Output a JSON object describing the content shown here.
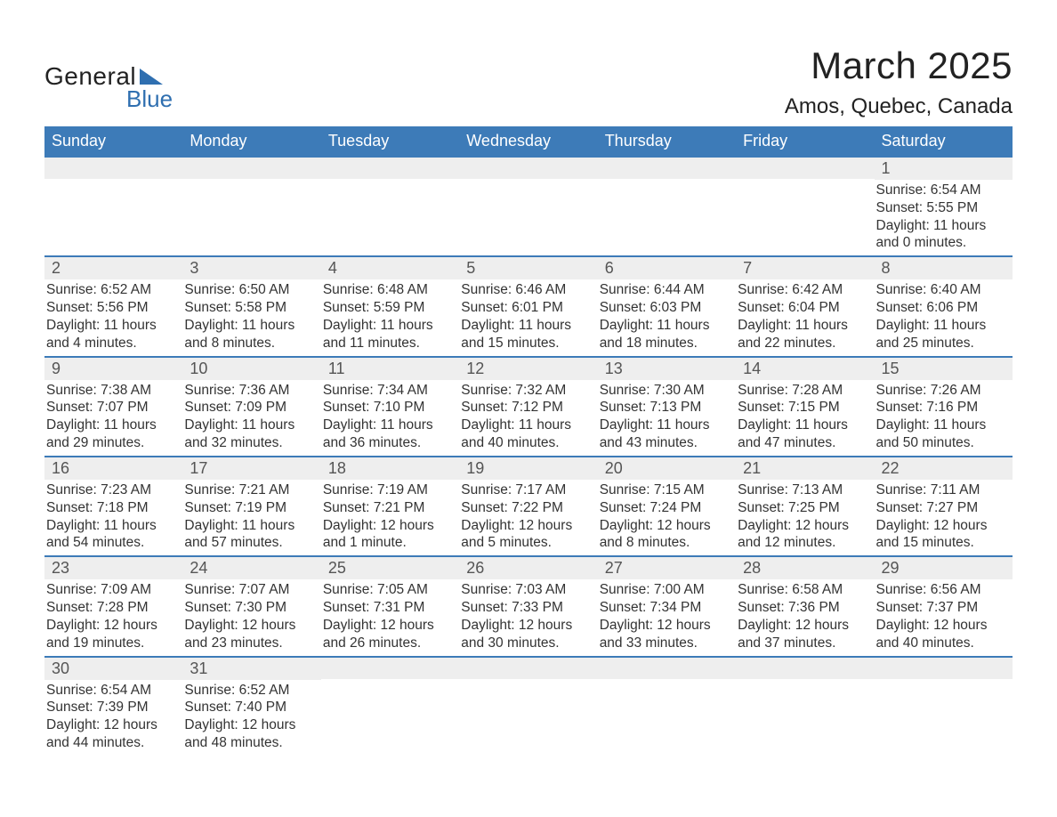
{
  "logo": {
    "general": "General",
    "blue": "Blue"
  },
  "title": "March 2025",
  "location": "Amos, Quebec, Canada",
  "theme": {
    "header_bg": "#3d7bb8",
    "header_fg": "#ffffff",
    "daynum_bg": "#eeeeee",
    "daynum_fg": "#555555",
    "text_fg": "#333333",
    "border": "#3d7bb8",
    "page_bg": "#ffffff"
  },
  "day_headers": [
    "Sunday",
    "Monday",
    "Tuesday",
    "Wednesday",
    "Thursday",
    "Friday",
    "Saturday"
  ],
  "weeks": [
    [
      {
        "n": "",
        "sr": "",
        "ss": "",
        "dl": ""
      },
      {
        "n": "",
        "sr": "",
        "ss": "",
        "dl": ""
      },
      {
        "n": "",
        "sr": "",
        "ss": "",
        "dl": ""
      },
      {
        "n": "",
        "sr": "",
        "ss": "",
        "dl": ""
      },
      {
        "n": "",
        "sr": "",
        "ss": "",
        "dl": ""
      },
      {
        "n": "",
        "sr": "",
        "ss": "",
        "dl": ""
      },
      {
        "n": "1",
        "sr": "Sunrise: 6:54 AM",
        "ss": "Sunset: 5:55 PM",
        "dl": "Daylight: 11 hours and 0 minutes."
      }
    ],
    [
      {
        "n": "2",
        "sr": "Sunrise: 6:52 AM",
        "ss": "Sunset: 5:56 PM",
        "dl": "Daylight: 11 hours and 4 minutes."
      },
      {
        "n": "3",
        "sr": "Sunrise: 6:50 AM",
        "ss": "Sunset: 5:58 PM",
        "dl": "Daylight: 11 hours and 8 minutes."
      },
      {
        "n": "4",
        "sr": "Sunrise: 6:48 AM",
        "ss": "Sunset: 5:59 PM",
        "dl": "Daylight: 11 hours and 11 minutes."
      },
      {
        "n": "5",
        "sr": "Sunrise: 6:46 AM",
        "ss": "Sunset: 6:01 PM",
        "dl": "Daylight: 11 hours and 15 minutes."
      },
      {
        "n": "6",
        "sr": "Sunrise: 6:44 AM",
        "ss": "Sunset: 6:03 PM",
        "dl": "Daylight: 11 hours and 18 minutes."
      },
      {
        "n": "7",
        "sr": "Sunrise: 6:42 AM",
        "ss": "Sunset: 6:04 PM",
        "dl": "Daylight: 11 hours and 22 minutes."
      },
      {
        "n": "8",
        "sr": "Sunrise: 6:40 AM",
        "ss": "Sunset: 6:06 PM",
        "dl": "Daylight: 11 hours and 25 minutes."
      }
    ],
    [
      {
        "n": "9",
        "sr": "Sunrise: 7:38 AM",
        "ss": "Sunset: 7:07 PM",
        "dl": "Daylight: 11 hours and 29 minutes."
      },
      {
        "n": "10",
        "sr": "Sunrise: 7:36 AM",
        "ss": "Sunset: 7:09 PM",
        "dl": "Daylight: 11 hours and 32 minutes."
      },
      {
        "n": "11",
        "sr": "Sunrise: 7:34 AM",
        "ss": "Sunset: 7:10 PM",
        "dl": "Daylight: 11 hours and 36 minutes."
      },
      {
        "n": "12",
        "sr": "Sunrise: 7:32 AM",
        "ss": "Sunset: 7:12 PM",
        "dl": "Daylight: 11 hours and 40 minutes."
      },
      {
        "n": "13",
        "sr": "Sunrise: 7:30 AM",
        "ss": "Sunset: 7:13 PM",
        "dl": "Daylight: 11 hours and 43 minutes."
      },
      {
        "n": "14",
        "sr": "Sunrise: 7:28 AM",
        "ss": "Sunset: 7:15 PM",
        "dl": "Daylight: 11 hours and 47 minutes."
      },
      {
        "n": "15",
        "sr": "Sunrise: 7:26 AM",
        "ss": "Sunset: 7:16 PM",
        "dl": "Daylight: 11 hours and 50 minutes."
      }
    ],
    [
      {
        "n": "16",
        "sr": "Sunrise: 7:23 AM",
        "ss": "Sunset: 7:18 PM",
        "dl": "Daylight: 11 hours and 54 minutes."
      },
      {
        "n": "17",
        "sr": "Sunrise: 7:21 AM",
        "ss": "Sunset: 7:19 PM",
        "dl": "Daylight: 11 hours and 57 minutes."
      },
      {
        "n": "18",
        "sr": "Sunrise: 7:19 AM",
        "ss": "Sunset: 7:21 PM",
        "dl": "Daylight: 12 hours and 1 minute."
      },
      {
        "n": "19",
        "sr": "Sunrise: 7:17 AM",
        "ss": "Sunset: 7:22 PM",
        "dl": "Daylight: 12 hours and 5 minutes."
      },
      {
        "n": "20",
        "sr": "Sunrise: 7:15 AM",
        "ss": "Sunset: 7:24 PM",
        "dl": "Daylight: 12 hours and 8 minutes."
      },
      {
        "n": "21",
        "sr": "Sunrise: 7:13 AM",
        "ss": "Sunset: 7:25 PM",
        "dl": "Daylight: 12 hours and 12 minutes."
      },
      {
        "n": "22",
        "sr": "Sunrise: 7:11 AM",
        "ss": "Sunset: 7:27 PM",
        "dl": "Daylight: 12 hours and 15 minutes."
      }
    ],
    [
      {
        "n": "23",
        "sr": "Sunrise: 7:09 AM",
        "ss": "Sunset: 7:28 PM",
        "dl": "Daylight: 12 hours and 19 minutes."
      },
      {
        "n": "24",
        "sr": "Sunrise: 7:07 AM",
        "ss": "Sunset: 7:30 PM",
        "dl": "Daylight: 12 hours and 23 minutes."
      },
      {
        "n": "25",
        "sr": "Sunrise: 7:05 AM",
        "ss": "Sunset: 7:31 PM",
        "dl": "Daylight: 12 hours and 26 minutes."
      },
      {
        "n": "26",
        "sr": "Sunrise: 7:03 AM",
        "ss": "Sunset: 7:33 PM",
        "dl": "Daylight: 12 hours and 30 minutes."
      },
      {
        "n": "27",
        "sr": "Sunrise: 7:00 AM",
        "ss": "Sunset: 7:34 PM",
        "dl": "Daylight: 12 hours and 33 minutes."
      },
      {
        "n": "28",
        "sr": "Sunrise: 6:58 AM",
        "ss": "Sunset: 7:36 PM",
        "dl": "Daylight: 12 hours and 37 minutes."
      },
      {
        "n": "29",
        "sr": "Sunrise: 6:56 AM",
        "ss": "Sunset: 7:37 PM",
        "dl": "Daylight: 12 hours and 40 minutes."
      }
    ],
    [
      {
        "n": "30",
        "sr": "Sunrise: 6:54 AM",
        "ss": "Sunset: 7:39 PM",
        "dl": "Daylight: 12 hours and 44 minutes."
      },
      {
        "n": "31",
        "sr": "Sunrise: 6:52 AM",
        "ss": "Sunset: 7:40 PM",
        "dl": "Daylight: 12 hours and 48 minutes."
      },
      {
        "n": "",
        "sr": "",
        "ss": "",
        "dl": ""
      },
      {
        "n": "",
        "sr": "",
        "ss": "",
        "dl": ""
      },
      {
        "n": "",
        "sr": "",
        "ss": "",
        "dl": ""
      },
      {
        "n": "",
        "sr": "",
        "ss": "",
        "dl": ""
      },
      {
        "n": "",
        "sr": "",
        "ss": "",
        "dl": ""
      }
    ]
  ]
}
